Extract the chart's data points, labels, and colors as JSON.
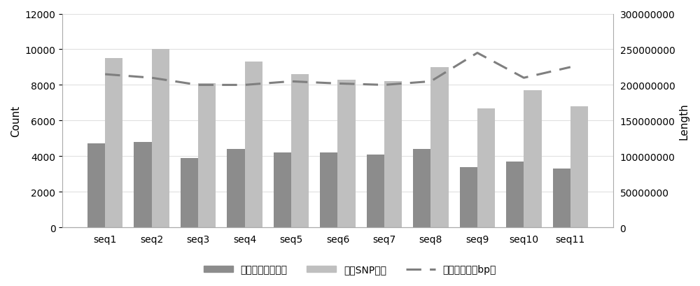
{
  "categories": [
    "seq1",
    "seq2",
    "seq3",
    "seq4",
    "seq5",
    "seq6",
    "seq7",
    "seq8",
    "seq9",
    "seq10",
    "seq11"
  ],
  "dark_bars": [
    4700,
    4800,
    3900,
    4400,
    4200,
    4200,
    4100,
    4400,
    3400,
    3700,
    3300
  ],
  "light_bars": [
    9500,
    10000,
    8100,
    9300,
    8600,
    8300,
    8200,
    9000,
    6700,
    7700,
    6800
  ],
  "dashed_line": [
    215000000,
    210000000,
    200000000,
    200000000,
    205000000,
    202000000,
    200000000,
    205000000,
    245000000,
    210000000,
    225000000
  ],
  "dark_bar_color": "#8c8c8c",
  "light_bar_color": "#bfbfbf",
  "dashed_line_color": "#7f7f7f",
  "ylabel_left": "Count",
  "ylabel_right": "Length",
  "ylim_left": [
    0,
    12000
  ],
  "ylim_right": [
    0,
    300000000
  ],
  "yticks_left": [
    0,
    2000,
    4000,
    6000,
    8000,
    10000,
    12000
  ],
  "yticks_right": [
    0,
    50000000,
    100000000,
    150000000,
    200000000,
    250000000,
    300000000
  ],
  "legend_labels": [
    "标记目标区段数量",
    "标记SNP个数",
    "染色体长度（bp）"
  ],
  "bg_color": "#ffffff",
  "grid_color": "#e0e0e0",
  "bar_width": 0.38
}
